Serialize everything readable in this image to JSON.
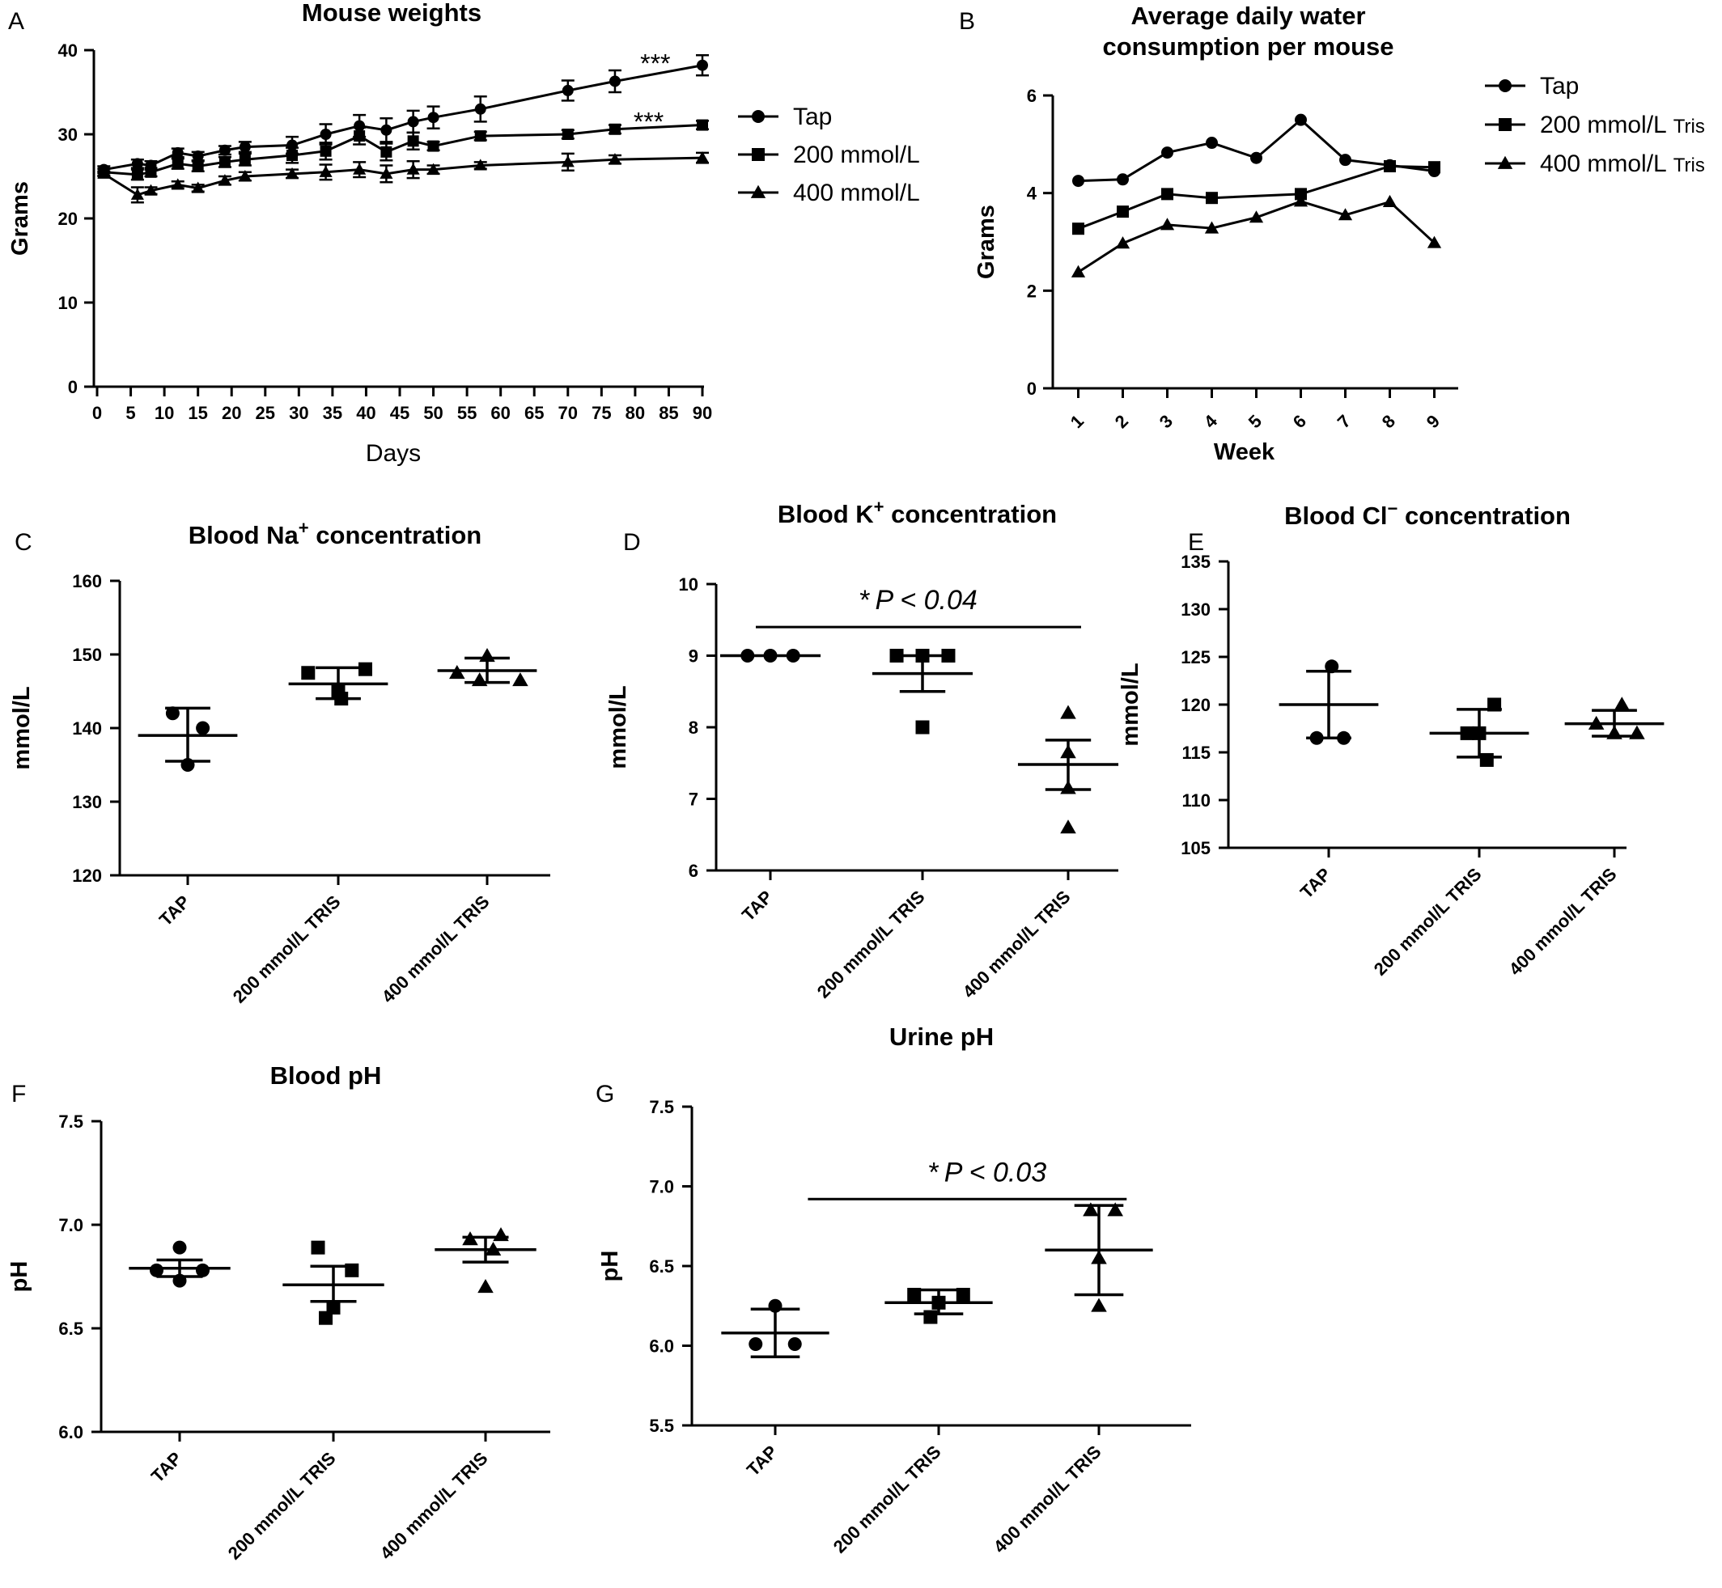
{
  "panels": [
    {
      "letter": "A",
      "type": "line",
      "title": "Mouse weights",
      "xlabel": "Days",
      "ylabel": "Grams",
      "xlim": [
        0,
        90
      ],
      "ylim": [
        0,
        40
      ],
      "xticks": [
        0,
        5,
        10,
        15,
        20,
        25,
        30,
        35,
        40,
        45,
        50,
        55,
        60,
        65,
        70,
        75,
        80,
        85,
        90
      ],
      "yticks": [
        0,
        10,
        20,
        30,
        40
      ],
      "legend_position": "right",
      "error_bars": true,
      "series": [
        {
          "name": "Tap",
          "marker": "circle",
          "x": [
            1,
            6,
            8,
            12,
            15,
            19,
            22,
            29,
            34,
            39,
            43,
            47,
            50,
            57,
            70,
            77,
            90
          ],
          "y": [
            25.8,
            26.5,
            26.3,
            27.8,
            27.4,
            28.1,
            28.5,
            28.7,
            30.0,
            31.0,
            30.5,
            31.5,
            32.0,
            33.0,
            35.2,
            36.3,
            38.2
          ],
          "err": [
            0.4,
            0.5,
            0.5,
            0.5,
            0.5,
            0.5,
            0.6,
            1.0,
            1.2,
            1.3,
            1.4,
            1.3,
            1.3,
            1.5,
            1.2,
            1.3,
            1.2
          ],
          "annotation": "***",
          "annotation_x": 83,
          "annotation_y": 38.3
        },
        {
          "name": "200 mmol/L",
          "marker": "square",
          "x": [
            1,
            6,
            8,
            12,
            15,
            19,
            22,
            29,
            34,
            39,
            43,
            47,
            50,
            57,
            70,
            77,
            90
          ],
          "y": [
            25.5,
            25.2,
            25.5,
            26.5,
            26.2,
            26.7,
            27.0,
            27.5,
            28.0,
            29.8,
            27.9,
            29.2,
            28.6,
            29.8,
            30.0,
            30.6,
            31.1
          ],
          "err": [
            0.4,
            0.6,
            0.5,
            0.6,
            0.6,
            0.6,
            0.7,
            0.9,
            1.0,
            1.0,
            1.0,
            1.0,
            0.5,
            0.5,
            0.5,
            0.5,
            0.5
          ],
          "annotation": "***",
          "annotation_x": 82,
          "annotation_y": 31.4
        },
        {
          "name": "400 mmol/L",
          "marker": "triangle",
          "x": [
            1,
            6,
            8,
            12,
            15,
            19,
            22,
            29,
            34,
            39,
            43,
            47,
            50,
            57,
            70,
            77,
            90
          ],
          "y": [
            25.3,
            22.8,
            23.3,
            24.0,
            23.6,
            24.5,
            25.0,
            25.3,
            25.5,
            25.8,
            25.3,
            25.8,
            25.8,
            26.3,
            26.7,
            27.0,
            27.2
          ],
          "err": [
            0.3,
            0.9,
            0.4,
            0.4,
            0.4,
            0.5,
            0.5,
            0.5,
            0.9,
            0.9,
            1.0,
            1.0,
            0.5,
            0.4,
            1.0,
            0.5,
            0.6
          ]
        }
      ]
    },
    {
      "letter": "B",
      "type": "line",
      "title": "Average daily water consumption per mouse",
      "title_lines": [
        "Average daily water",
        "consumption per mouse"
      ],
      "xlabel": "Week",
      "ylabel": "Grams",
      "xlim": [
        0.5,
        9.5
      ],
      "ylim": [
        0,
        6
      ],
      "xticks": [
        1,
        2,
        3,
        4,
        5,
        6,
        7,
        8,
        9
      ],
      "yticks": [
        0,
        2,
        4,
        6
      ],
      "legend_position": "right",
      "series": [
        {
          "name": "Tap",
          "marker": "circle",
          "x": [
            1,
            2,
            3,
            4,
            5,
            6,
            7,
            8,
            9
          ],
          "y": [
            4.25,
            4.28,
            4.83,
            5.03,
            4.72,
            5.5,
            4.68,
            4.57,
            4.45
          ]
        },
        {
          "name": "200 mmol/L Tris",
          "name_main": "200 mmol/L",
          "name_suffix": "Tris",
          "marker": "square",
          "x": [
            1,
            2,
            3,
            6,
            8,
            9
          ],
          "y": [
            3.27,
            3.62,
            3.98,
            3.98,
            4.55,
            4.53
          ],
          "x_full": [
            1,
            2,
            3,
            4,
            6,
            8,
            9
          ],
          "y_full": [
            3.27,
            3.62,
            3.98,
            3.9,
            3.98,
            4.55,
            4.53
          ]
        },
        {
          "name": "400 mmol/L Tris",
          "name_main": "400 mmol/L",
          "name_suffix": "Tris",
          "marker": "triangle",
          "x": [
            1,
            2,
            3,
            4,
            5,
            6,
            7,
            8,
            9
          ],
          "y": [
            2.38,
            2.97,
            3.35,
            3.28,
            3.5,
            3.83,
            3.55,
            3.82,
            2.98
          ]
        }
      ]
    },
    {
      "letter": "C",
      "type": "scatter",
      "title": "Blood Na+ concentration",
      "title_main": "Blood Na",
      "title_sup": "+",
      "title_rest": " concentration",
      "ylabel": "mmol/L",
      "ylim": [
        120,
        160
      ],
      "yticks": [
        120,
        130,
        140,
        150,
        160
      ],
      "categories": [
        "TAP",
        "200 mmol/L TRIS",
        "400 mmol/L TRIS"
      ],
      "groups": [
        {
          "marker": "circle",
          "points": [
            [
              -0.1,
              142
            ],
            [
              0.1,
              140
            ],
            [
              0,
              135
            ]
          ],
          "mean": 139,
          "sem_low": 135.5,
          "sem_high": 142.7
        },
        {
          "marker": "square",
          "points": [
            [
              -0.2,
              147.5
            ],
            [
              0.18,
              148
            ],
            [
              0,
              145
            ],
            [
              0.02,
              144
            ]
          ],
          "mean": 146,
          "sem_low": 144,
          "sem_high": 148.2
        },
        {
          "marker": "triangle",
          "points": [
            [
              -0.2,
              147.5
            ],
            [
              0,
              149.8
            ],
            [
              0.22,
              146.5
            ],
            [
              -0.05,
              146.5
            ]
          ],
          "mean": 147.8,
          "sem_low": 146.2,
          "sem_high": 149.5
        }
      ]
    },
    {
      "letter": "D",
      "type": "scatter",
      "title": "Blood K+ concentration",
      "title_main": "Blood K",
      "title_sup": "+",
      "title_rest": " concentration",
      "ylabel": "mmol/L",
      "ylim": [
        6,
        10
      ],
      "yticks": [
        6,
        7,
        8,
        9,
        10
      ],
      "categories": [
        "TAP",
        "200 mmol/L TRIS",
        "400 mmol/L TRIS"
      ],
      "annotation": {
        "star": "*",
        "text": "P < 0.04",
        "from": 0,
        "to": 2,
        "y": 9.4
      },
      "groups": [
        {
          "marker": "circle",
          "points": [
            [
              -0.15,
              9
            ],
            [
              0,
              9
            ],
            [
              0.15,
              9
            ]
          ],
          "mean": 9,
          "sem_low": 9,
          "sem_high": 9
        },
        {
          "marker": "square",
          "points": [
            [
              -0.17,
              9
            ],
            [
              0,
              9
            ],
            [
              0.17,
              9
            ],
            [
              0,
              8
            ]
          ],
          "mean": 8.75,
          "sem_low": 8.5,
          "sem_high": 9
        },
        {
          "marker": "triangle",
          "points": [
            [
              0,
              8.2
            ],
            [
              0,
              7.65
            ],
            [
              0,
              7.15
            ],
            [
              0,
              6.6
            ]
          ],
          "mean": 7.48,
          "sem_low": 7.13,
          "sem_high": 7.82
        }
      ]
    },
    {
      "letter": "E",
      "type": "scatter",
      "title": "Blood Cl− concentration",
      "title_main": "Blood Cl",
      "title_sup": "−",
      "title_rest": " concentration",
      "ylabel": "mmol/L",
      "ylim": [
        105,
        135
      ],
      "yticks": [
        105,
        110,
        115,
        120,
        125,
        130,
        135
      ],
      "categories": [
        "TAP",
        "200 mmol/L TRIS",
        "400 mmol/L TRIS"
      ],
      "groups": [
        {
          "marker": "circle",
          "points": [
            [
              0.02,
              124
            ],
            [
              -0.08,
              116.5
            ],
            [
              0.1,
              116.5
            ]
          ],
          "mean": 120,
          "sem_low": 116.5,
          "sem_high": 123.5
        },
        {
          "marker": "square",
          "points": [
            [
              0.1,
              120
            ],
            [
              0,
              117
            ],
            [
              0.05,
              114.2
            ],
            [
              -0.08,
              117
            ]
          ],
          "mean": 117,
          "sem_low": 114.5,
          "sem_high": 119.5
        },
        {
          "marker": "triangle",
          "points": [
            [
              0.05,
              120
            ],
            [
              -0.12,
              118
            ],
            [
              0.15,
              117
            ],
            [
              0,
              117
            ]
          ],
          "mean": 118,
          "sem_low": 116.7,
          "sem_high": 119.4
        }
      ]
    },
    {
      "letter": "F",
      "type": "scatter",
      "title": "Blood pH",
      "ylabel": "pH",
      "ylim": [
        6.0,
        7.5
      ],
      "yticks": [
        6.0,
        6.5,
        7.0,
        7.5
      ],
      "ytick_format": 1,
      "categories": [
        "TAP",
        "200 mmol/L TRIS",
        "400 mmol/L TRIS"
      ],
      "groups": [
        {
          "marker": "circle",
          "points": [
            [
              0,
              6.89
            ],
            [
              -0.15,
              6.78
            ],
            [
              0.15,
              6.78
            ],
            [
              0,
              6.73
            ]
          ],
          "mean": 6.79,
          "sem_low": 6.75,
          "sem_high": 6.83
        },
        {
          "marker": "square",
          "points": [
            [
              -0.1,
              6.89
            ],
            [
              0.12,
              6.78
            ],
            [
              0,
              6.6
            ],
            [
              -0.05,
              6.55
            ]
          ],
          "mean": 6.71,
          "sem_low": 6.63,
          "sem_high": 6.8
        },
        {
          "marker": "triangle",
          "points": [
            [
              0.1,
              6.95
            ],
            [
              -0.1,
              6.93
            ],
            [
              0.05,
              6.88
            ],
            [
              0,
              6.7
            ]
          ],
          "mean": 6.88,
          "sem_low": 6.82,
          "sem_high": 6.94
        }
      ]
    },
    {
      "letter": "G",
      "type": "scatter",
      "title": "Urine pH",
      "ylabel": "pH",
      "ylim": [
        5.5,
        7.5
      ],
      "yticks": [
        5.5,
        6.0,
        6.5,
        7.0,
        7.5
      ],
      "ytick_format": 1,
      "categories": [
        "TAP",
        "200 mmol/L TRIS",
        "400 mmol/L TRIS"
      ],
      "annotation": {
        "star": "*",
        "text": "P < 0.03",
        "from": 0.2,
        "to": 2.15,
        "y": 6.92
      },
      "groups": [
        {
          "marker": "circle",
          "points": [
            [
              0,
              6.25
            ],
            [
              -0.12,
              6.01
            ],
            [
              0.12,
              6.01
            ]
          ],
          "mean": 6.08,
          "sem_low": 5.93,
          "sem_high": 6.23
        },
        {
          "marker": "square",
          "points": [
            [
              -0.15,
              6.32
            ],
            [
              0,
              6.27
            ],
            [
              0.15,
              6.32
            ],
            [
              -0.05,
              6.18
            ]
          ],
          "mean": 6.27,
          "sem_low": 6.2,
          "sem_high": 6.35
        },
        {
          "marker": "triangle",
          "points": [
            [
              -0.05,
              6.85
            ],
            [
              0.1,
              6.85
            ],
            [
              0,
              6.55
            ],
            [
              0,
              6.25
            ]
          ],
          "mean": 6.6,
          "sem_low": 6.32,
          "sem_high": 6.88
        }
      ]
    }
  ]
}
